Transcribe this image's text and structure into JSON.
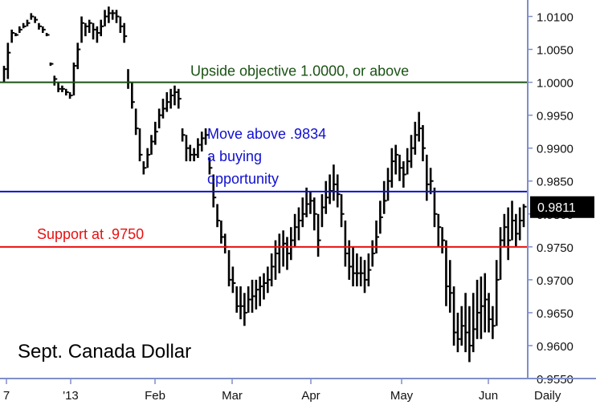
{
  "chart_data": {
    "type": "bar",
    "title": "Sept. Canada Dollar",
    "period_label": "Daily",
    "y_range": [
      0.955,
      1.0125
    ],
    "y_ticks": [
      "1.0100",
      "1.0050",
      "1.0000",
      "0.9950",
      "0.9900",
      "0.9850",
      "0.9800",
      "0.9750",
      "0.9700",
      "0.9650",
      "0.9600",
      "0.9550"
    ],
    "x_labels": [
      "7",
      "'13",
      "Feb",
      "Mar",
      "Apr",
      "May",
      "Jun"
    ],
    "last_value": 0.9811,
    "last_value_label": "0.9811",
    "colors": {
      "green_line": "#1a5214",
      "blue_line": "#1010d0",
      "red_line": "#e81010",
      "price_bars": "#000000",
      "axis": "#7f8fc8",
      "label_bg": "#000000"
    },
    "levels": [
      {
        "id": "objective",
        "value": 1.0,
        "color": "#1a5214",
        "text": "Upside objective 1.0000, or above"
      },
      {
        "id": "buy",
        "value": 0.9834,
        "color": "#1010d0",
        "lines": [
          "Move above .9834",
          "a buying",
          "opportunity"
        ]
      },
      {
        "id": "support",
        "value": 0.975,
        "color": "#e81010",
        "text": "Support at .9750"
      }
    ],
    "bars": [
      [
        1.0025,
        1.0,
        1.002
      ],
      [
        1.006,
        1.0005,
        1.0045
      ],
      [
        1.008,
        1.006,
        1.0075
      ],
      [
        1.0075,
        1.007,
        1.0072
      ],
      [
        1.0085,
        1.0075,
        1.008
      ],
      [
        1.009,
        1.0082,
        1.0085
      ],
      [
        1.0095,
        1.0085,
        1.009
      ],
      [
        1.0105,
        1.0095,
        1.01
      ],
      [
        1.01,
        1.009,
        1.0095
      ],
      [
        1.009,
        1.008,
        1.0085
      ],
      [
        1.0085,
        1.0075,
        1.008
      ],
      [
        1.0075,
        1.007,
        1.0072
      ],
      [
        1.003,
        1.0025,
        1.0028
      ],
      [
        1.001,
        0.9995,
        1.0005
      ],
      [
        1.0,
        0.9985,
        0.999
      ],
      [
        0.9995,
        0.9985,
        0.999
      ],
      [
        0.999,
        0.998,
        0.9985
      ],
      [
        0.9985,
        0.9975,
        0.998
      ],
      [
        1.003,
        0.998,
        1.0025
      ],
      [
        1.006,
        1.002,
        1.005
      ],
      [
        1.01,
        1.006,
        1.009
      ],
      [
        1.009,
        1.007,
        1.0085
      ],
      [
        1.0095,
        1.0075,
        1.009
      ],
      [
        1.009,
        1.0065,
        1.008
      ],
      [
        1.0085,
        1.006,
        1.0075
      ],
      [
        1.0095,
        1.007,
        1.0085
      ],
      [
        1.011,
        1.0085,
        1.01
      ],
      [
        1.0115,
        1.009,
        1.0105
      ],
      [
        1.011,
        1.0095,
        1.0105
      ],
      [
        1.011,
        1.009,
        1.01
      ],
      [
        1.01,
        1.0075,
        1.0085
      ],
      [
        1.009,
        1.006,
        1.007
      ],
      [
        1.002,
        0.999,
        1.0
      ],
      [
        1.0,
        0.996,
        0.997
      ],
      [
        0.996,
        0.992,
        0.993
      ],
      [
        0.993,
        0.988,
        0.989
      ],
      [
        0.988,
        0.986,
        0.987
      ],
      [
        0.99,
        0.987,
        0.989
      ],
      [
        0.992,
        0.989,
        0.991
      ],
      [
        0.994,
        0.9905,
        0.9925
      ],
      [
        0.996,
        0.993,
        0.995
      ],
      [
        0.9975,
        0.9945,
        0.996
      ],
      [
        0.9985,
        0.9955,
        0.997
      ],
      [
        0.999,
        0.996,
        0.998
      ],
      [
        0.9995,
        0.9965,
        0.9985
      ],
      [
        0.999,
        0.996,
        0.9975
      ],
      [
        0.993,
        0.991,
        0.992
      ],
      [
        0.992,
        0.988,
        0.99
      ],
      [
        0.9905,
        0.988,
        0.989
      ],
      [
        0.99,
        0.988,
        0.989
      ],
      [
        0.9915,
        0.9885,
        0.9905
      ],
      [
        0.9925,
        0.9895,
        0.9915
      ],
      [
        0.993,
        0.9905,
        0.992
      ],
      [
        0.9885,
        0.986,
        0.987
      ],
      [
        0.986,
        0.981,
        0.9825
      ],
      [
        0.9815,
        0.978,
        0.979
      ],
      [
        0.979,
        0.9755,
        0.9765
      ],
      [
        0.977,
        0.974,
        0.975
      ],
      [
        0.9745,
        0.969,
        0.97
      ],
      [
        0.972,
        0.968,
        0.9695
      ],
      [
        0.969,
        0.965,
        0.966
      ],
      [
        0.969,
        0.964,
        0.966
      ],
      [
        0.968,
        0.963,
        0.965
      ],
      [
        0.969,
        0.965,
        0.967
      ],
      [
        0.97,
        0.965,
        0.9675
      ],
      [
        0.97,
        0.9655,
        0.9685
      ],
      [
        0.9705,
        0.966,
        0.969
      ],
      [
        0.971,
        0.967,
        0.9695
      ],
      [
        0.972,
        0.968,
        0.97
      ],
      [
        0.974,
        0.969,
        0.972
      ],
      [
        0.976,
        0.97,
        0.974
      ],
      [
        0.977,
        0.971,
        0.975
      ],
      [
        0.9775,
        0.972,
        0.9755
      ],
      [
        0.9765,
        0.9715,
        0.974
      ],
      [
        0.978,
        0.973,
        0.976
      ],
      [
        0.98,
        0.975,
        0.978
      ],
      [
        0.981,
        0.976,
        0.979
      ],
      [
        0.9825,
        0.978,
        0.98
      ],
      [
        0.984,
        0.9795,
        0.9815
      ],
      [
        0.9835,
        0.98,
        0.982
      ],
      [
        0.9825,
        0.9775,
        0.98
      ],
      [
        0.98,
        0.9735,
        0.976
      ],
      [
        0.983,
        0.978,
        0.981
      ],
      [
        0.985,
        0.98,
        0.9825
      ],
      [
        0.986,
        0.9815,
        0.9835
      ],
      [
        0.9875,
        0.982,
        0.9845
      ],
      [
        0.986,
        0.981,
        0.983
      ],
      [
        0.983,
        0.978,
        0.98
      ],
      [
        0.979,
        0.972,
        0.974
      ],
      [
        0.976,
        0.97,
        0.972
      ],
      [
        0.975,
        0.969,
        0.971
      ],
      [
        0.974,
        0.969,
        0.971
      ],
      [
        0.9735,
        0.969,
        0.971
      ],
      [
        0.973,
        0.968,
        0.97
      ],
      [
        0.974,
        0.969,
        0.9715
      ],
      [
        0.976,
        0.972,
        0.974
      ],
      [
        0.979,
        0.974,
        0.9765
      ],
      [
        0.982,
        0.977,
        0.9795
      ],
      [
        0.985,
        0.98,
        0.982
      ],
      [
        0.987,
        0.982,
        0.985
      ],
      [
        0.99,
        0.984,
        0.988
      ],
      [
        0.9905,
        0.986,
        0.989
      ],
      [
        0.989,
        0.985,
        0.987
      ],
      [
        0.988,
        0.984,
        0.986
      ],
      [
        0.99,
        0.986,
        0.988
      ],
      [
        0.992,
        0.987,
        0.99
      ],
      [
        0.994,
        0.989,
        0.992
      ],
      [
        0.9955,
        0.991,
        0.993
      ],
      [
        0.9935,
        0.988,
        0.99
      ],
      [
        0.989,
        0.982,
        0.9845
      ],
      [
        0.987,
        0.983,
        0.985
      ],
      [
        0.984,
        0.978,
        0.98
      ],
      [
        0.98,
        0.975,
        0.978
      ],
      [
        0.978,
        0.974,
        0.976
      ],
      [
        0.976,
        0.966,
        0.969
      ],
      [
        0.973,
        0.965,
        0.968
      ],
      [
        0.969,
        0.96,
        0.962
      ],
      [
        0.965,
        0.959,
        0.961
      ],
      [
        0.966,
        0.96,
        0.963
      ],
      [
        0.968,
        0.959,
        0.962
      ],
      [
        0.966,
        0.9575,
        0.96
      ],
      [
        0.968,
        0.959,
        0.9625
      ],
      [
        0.97,
        0.961,
        0.965
      ],
      [
        0.9705,
        0.961,
        0.966
      ],
      [
        0.971,
        0.962,
        0.967
      ],
      [
        0.968,
        0.962,
        0.964
      ],
      [
        0.966,
        0.961,
        0.963
      ],
      [
        0.973,
        0.963,
        0.97
      ],
      [
        0.978,
        0.97,
        0.976
      ],
      [
        0.98,
        0.975,
        0.978
      ],
      [
        0.981,
        0.973,
        0.976
      ],
      [
        0.982,
        0.976,
        0.979
      ],
      [
        0.98,
        0.975,
        0.977
      ],
      [
        0.981,
        0.976,
        0.979
      ],
      [
        0.9815,
        0.978,
        0.9811
      ]
    ]
  }
}
